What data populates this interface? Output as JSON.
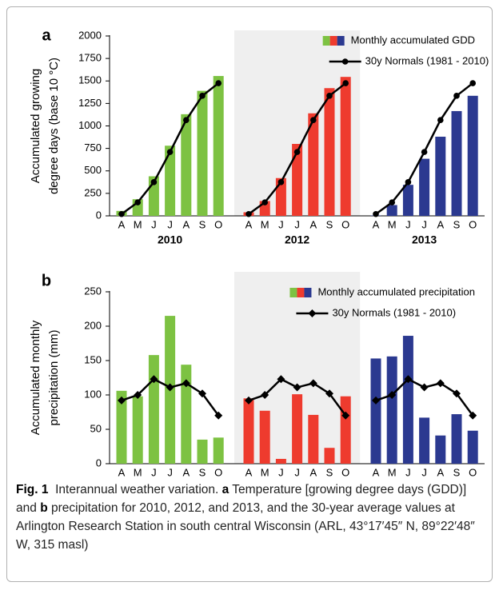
{
  "chart_data": [
    {
      "type": "bar",
      "panel": "a",
      "ylabel": [
        "Accumulated growing",
        "degree days (base 10 °C)"
      ],
      "categories": [
        "A",
        "M",
        "J",
        "J",
        "A",
        "S",
        "O",
        "A",
        "M",
        "J",
        "J",
        "A",
        "S",
        "O",
        "A",
        "M",
        "J",
        "J",
        "A",
        "S",
        "O"
      ],
      "group_labels": [
        "2010",
        "2012",
        "2013"
      ],
      "group_size": 7,
      "shaded_group": 1,
      "ylim": [
        0,
        2000
      ],
      "yticks": [
        0,
        250,
        500,
        750,
        1000,
        1250,
        1500,
        1750,
        2000
      ],
      "legend": "upper right",
      "series": [
        {
          "name": "Monthly accumulated GDD",
          "kind": "bar",
          "colors": [
            "#7dc242",
            "#ee3b2e",
            "#2b3990"
          ],
          "values": [
            55,
            185,
            440,
            780,
            1130,
            1390,
            1555,
            40,
            165,
            420,
            800,
            1140,
            1420,
            1545,
            5,
            120,
            345,
            635,
            880,
            1165,
            1335
          ]
        },
        {
          "name": "30y Normals (1981 - 2010)",
          "kind": "line",
          "color": "#000000",
          "marker": "circle",
          "values": [
            20,
            150,
            375,
            710,
            1065,
            1335,
            1475,
            20,
            150,
            375,
            710,
            1065,
            1335,
            1475,
            20,
            150,
            375,
            710,
            1065,
            1335,
            1475
          ]
        }
      ]
    },
    {
      "type": "bar",
      "panel": "b",
      "ylabel": [
        "Accumulated monthly",
        "precipitation (mm)"
      ],
      "categories": [
        "A",
        "M",
        "J",
        "J",
        "A",
        "S",
        "O",
        "A",
        "M",
        "J",
        "J",
        "A",
        "S",
        "O",
        "A",
        "M",
        "J",
        "J",
        "A",
        "S",
        "O"
      ],
      "group_labels": [
        "2010",
        "2012",
        "2013"
      ],
      "group_size": 7,
      "shaded_group": 1,
      "ylim": [
        0,
        250
      ],
      "yticks": [
        0,
        50,
        100,
        150,
        200,
        250
      ],
      "legend": "upper right",
      "series": [
        {
          "name": "Monthly accumulated precipitation",
          "kind": "bar",
          "colors": [
            "#7dc242",
            "#ee3b2e",
            "#2b3990"
          ],
          "values": [
            106,
            98,
            158,
            215,
            144,
            35,
            38,
            95,
            77,
            7,
            101,
            71,
            23,
            98,
            153,
            156,
            186,
            67,
            41,
            72,
            48
          ]
        },
        {
          "name": "30y Normals (1981 - 2010)",
          "kind": "line",
          "color": "#000000",
          "marker": "diamond",
          "values": [
            92,
            100,
            123,
            111,
            117,
            102,
            70,
            92,
            100,
            123,
            111,
            117,
            102,
            70,
            92,
            100,
            123,
            111,
            117,
            102,
            70
          ]
        }
      ]
    }
  ],
  "caption": {
    "label": "Fig. 1",
    "title": "Interannual weather variation.",
    "a": "a",
    "a_text": "Temperature [growing degree days (GDD)] and",
    "b": "b",
    "b_text": "precipitation for 2010, 2012, and 2013, and the 30-year average values at Arlington Research Station in south central Wisconsin (ARL, 43°17′45″ N, 89°22′48″ W, 315 masl)"
  }
}
